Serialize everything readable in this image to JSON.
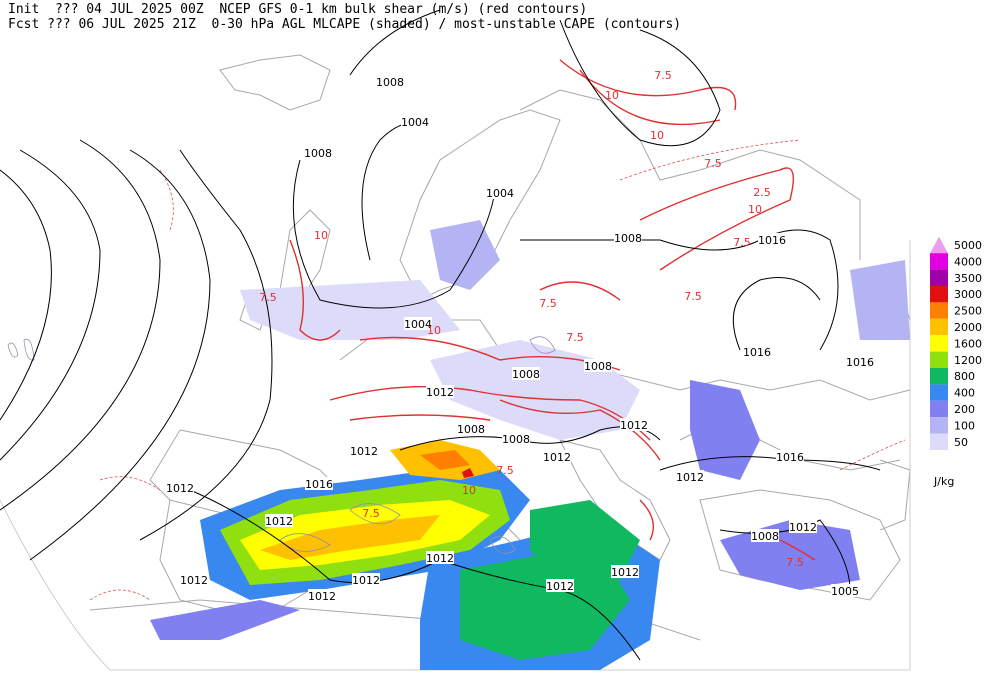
{
  "header": {
    "line1": "Init  ??? 04 JUL 2025 00Z  NCEP GFS 0-1 km bulk shear (m/s) (red contours)",
    "line2": "Fcst ??? 06 JUL 2025 21Z  0-30 hPa AGL MLCAPE (shaded) / most-unstable CAPE (contours)"
  },
  "legend": {
    "unit": "J/kg",
    "levels": [
      {
        "label": "5000",
        "color": "#ee9cee"
      },
      {
        "label": "4000",
        "color": "#e000e0"
      },
      {
        "label": "3500",
        "color": "#a000a8"
      },
      {
        "label": "3000",
        "color": "#e01010"
      },
      {
        "label": "2500",
        "color": "#ff8000"
      },
      {
        "label": "2000",
        "color": "#ffc000"
      },
      {
        "label": "1600",
        "color": "#ffff00"
      },
      {
        "label": "1200",
        "color": "#90e010"
      },
      {
        "label": "800",
        "color": "#10b860"
      },
      {
        "label": "400",
        "color": "#3888f0"
      },
      {
        "label": "200",
        "color": "#8080f0"
      },
      {
        "label": "100",
        "color": "#b4b4f4"
      },
      {
        "label": "50",
        "color": "#dcdcfa"
      }
    ]
  },
  "isobar_labels": [
    "1008",
    "1004",
    "1008",
    "1004",
    "1008",
    "1016",
    "1004",
    "1016",
    "1016",
    "1008",
    "1008",
    "1012",
    "1012",
    "1008",
    "1008",
    "1012",
    "1012",
    "1012",
    "1016",
    "1016",
    "1012",
    "1012",
    "1012",
    "1012",
    "1012",
    "1012",
    "1012",
    "1012",
    "1012",
    "1008",
    "1005"
  ],
  "shear_labels": [
    "7.5",
    "10",
    "2.5",
    "10",
    "7.5",
    "7.5",
    "7.5",
    "7.5",
    "10",
    "7.5",
    "10",
    "7.5",
    "7.5",
    "10",
    "7.5",
    "10",
    "7.5"
  ]
}
